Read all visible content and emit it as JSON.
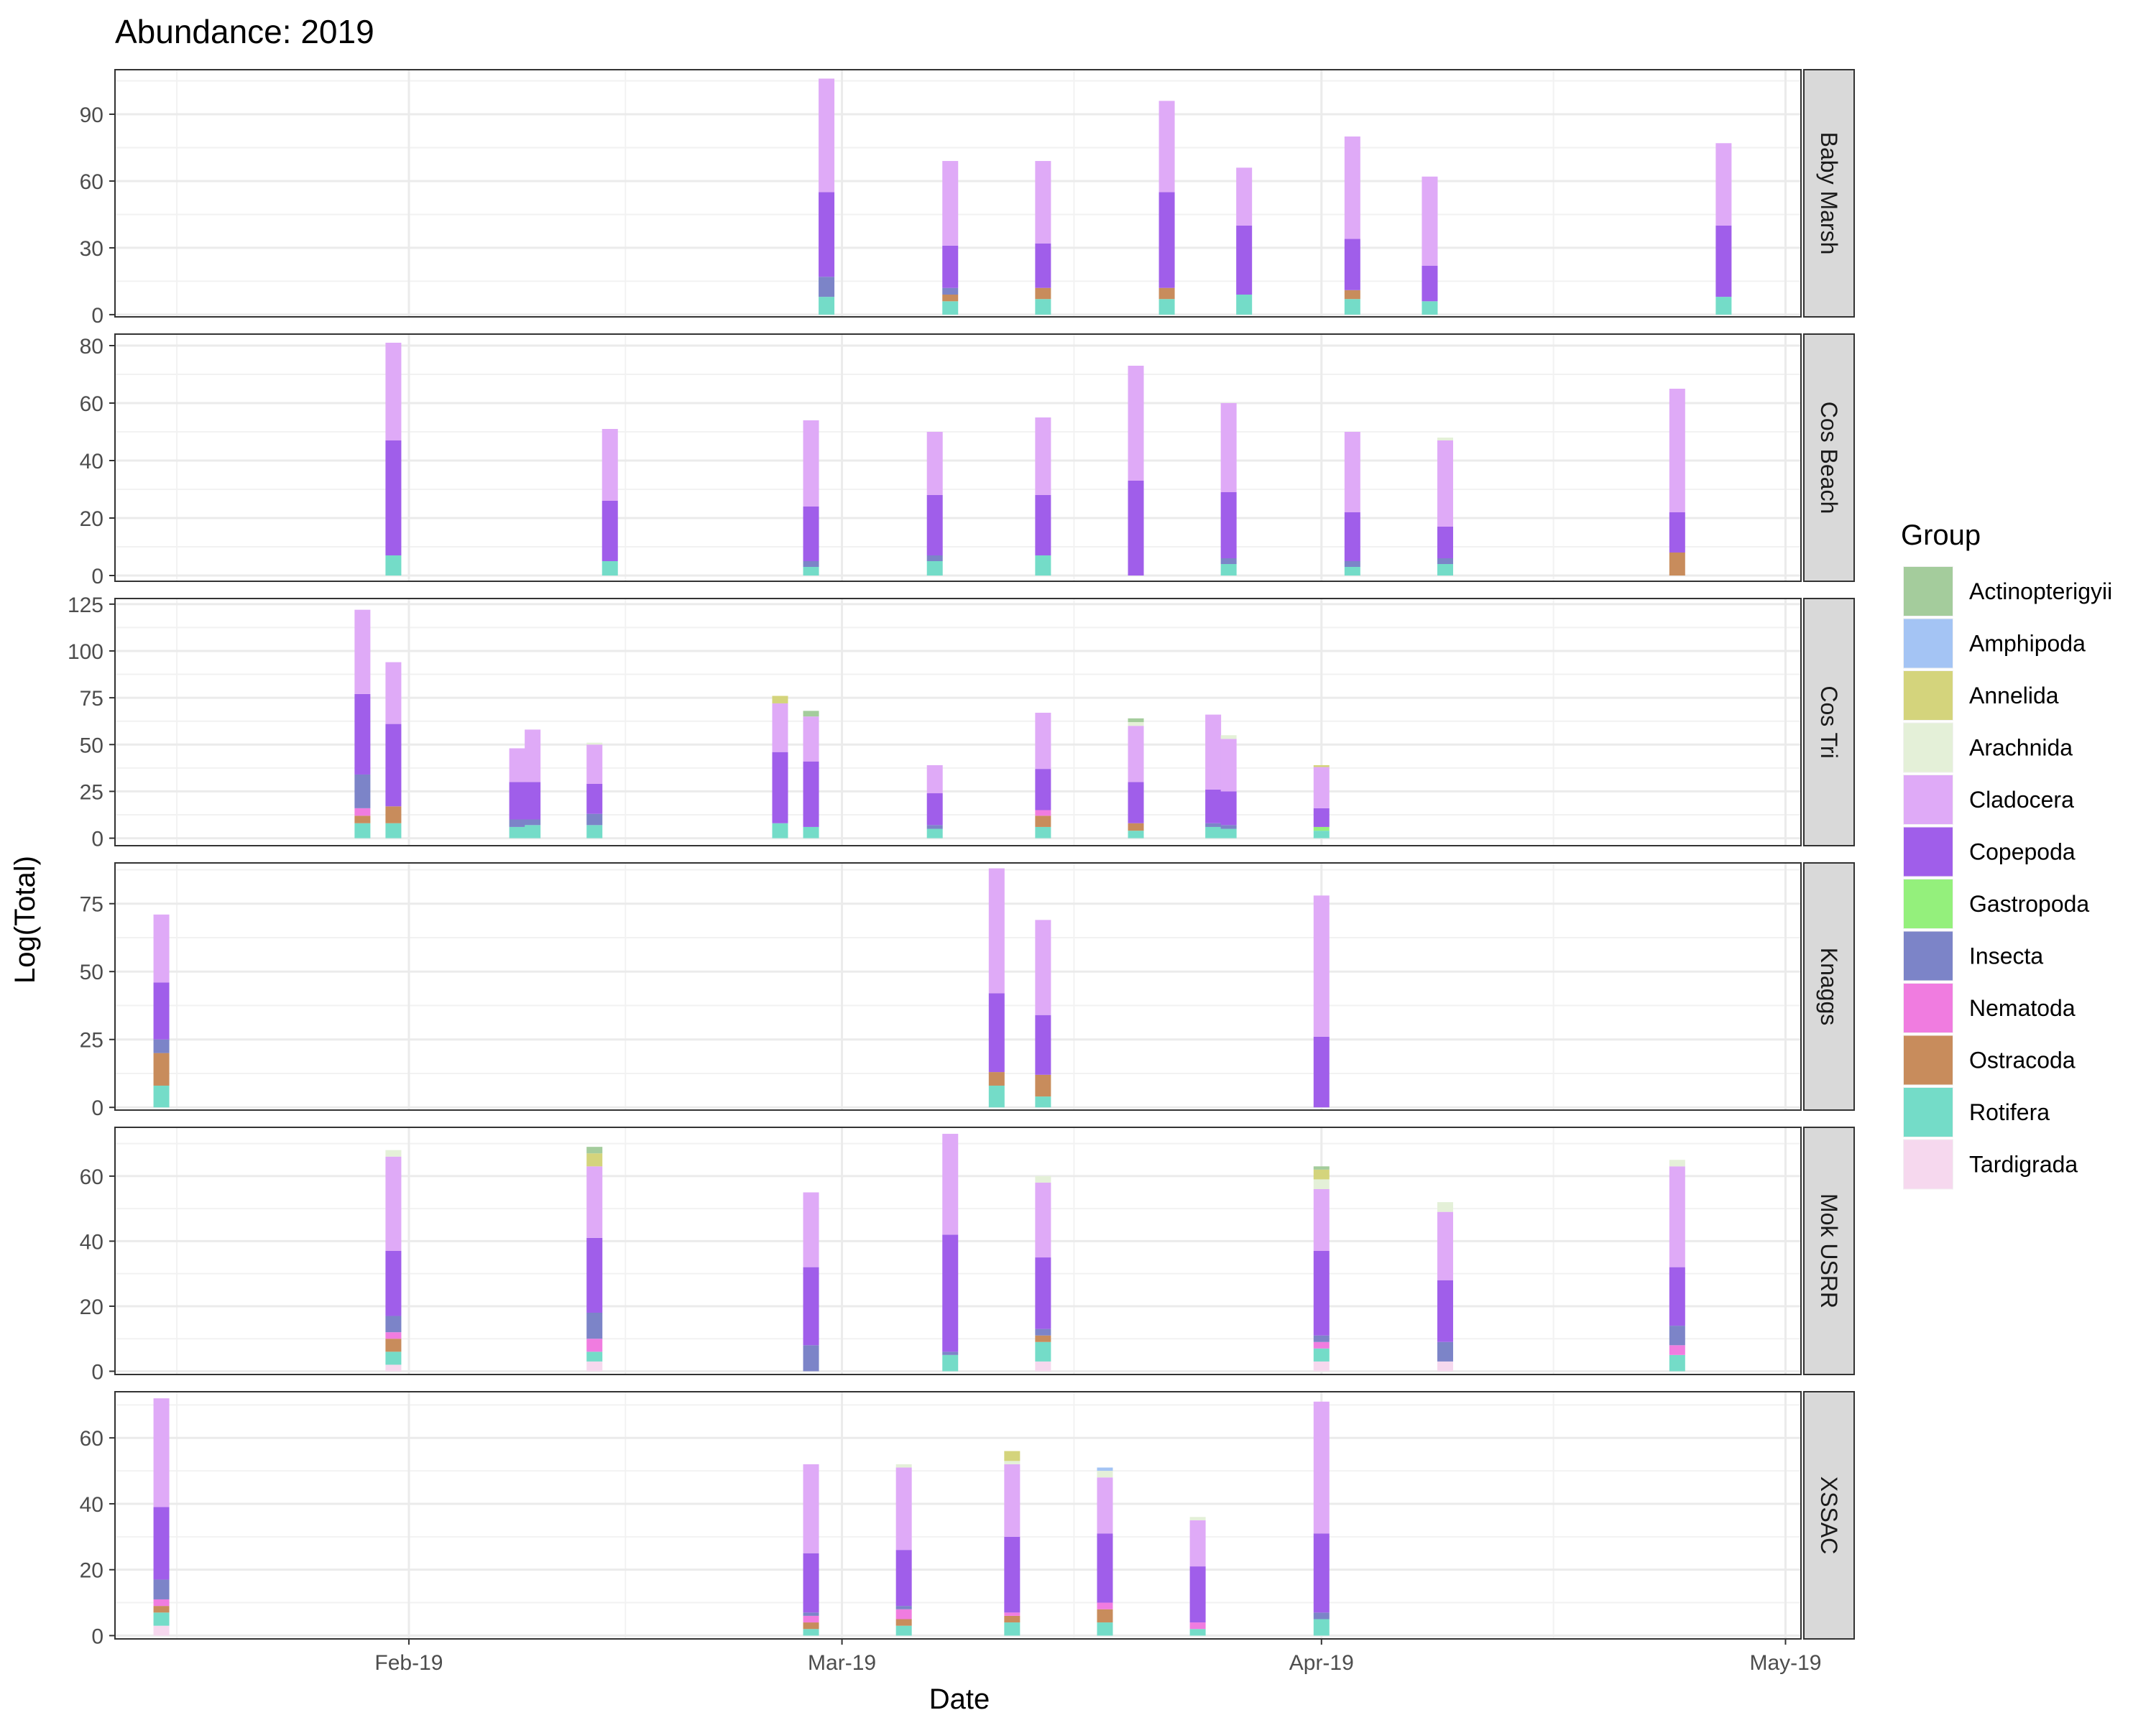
{
  "chart_data": {
    "type": "bar",
    "stacked": true,
    "faceted": true,
    "title": "Abundance: 2019",
    "xlabel": "Date",
    "ylabel": "Log(Total)",
    "legend_title": "Group",
    "legend_position": "right",
    "grid": true,
    "x_range": [
      "2019-01-13",
      "2019-05-02"
    ],
    "x_ticks": [
      {
        "date": "2019-02-01",
        "label": "Feb-19"
      },
      {
        "date": "2019-03-01",
        "label": "Mar-19"
      },
      {
        "date": "2019-04-01",
        "label": "Apr-19"
      },
      {
        "date": "2019-05-01",
        "label": "May-19"
      }
    ],
    "groups": [
      {
        "name": "Actinopterigyii",
        "color": "#a4cc9c"
      },
      {
        "name": "Amphipoda",
        "color": "#a4c4f4"
      },
      {
        "name": "Annelida",
        "color": "#d4d47c"
      },
      {
        "name": "Arachnida",
        "color": "#e4f0d8"
      },
      {
        "name": "Cladocera",
        "color": "#dfaaf7"
      },
      {
        "name": "Copepoda",
        "color": "#a05eea"
      },
      {
        "name": "Gastropoda",
        "color": "#94f07c"
      },
      {
        "name": "Insecta",
        "color": "#7c84c8"
      },
      {
        "name": "Nematoda",
        "color": "#f07ce0"
      },
      {
        "name": "Ostracoda",
        "color": "#c88c5c"
      },
      {
        "name": "Rotifera",
        "color": "#74dcc8"
      },
      {
        "name": "Tardigrada",
        "color": "#f6d8ee"
      }
    ],
    "facets": [
      {
        "name": "Baby Marsh",
        "ylim": [
          -1,
          110
        ],
        "yticks": [
          0,
          30,
          60,
          90
        ],
        "bars": [
          {
            "date": "2019-02-28",
            "segments": {
              "Rotifera": 8,
              "Insecta": 9,
              "Copepoda": 38,
              "Cladocera": 51
            }
          },
          {
            "date": "2019-03-08",
            "segments": {
              "Rotifera": 6,
              "Ostracoda": 3,
              "Insecta": 3,
              "Copepoda": 19,
              "Cladocera": 38
            }
          },
          {
            "date": "2019-03-14",
            "segments": {
              "Rotifera": 7,
              "Ostracoda": 5,
              "Copepoda": 20,
              "Cladocera": 37
            }
          },
          {
            "date": "2019-03-22",
            "segments": {
              "Rotifera": 7,
              "Ostracoda": 5,
              "Copepoda": 43,
              "Cladocera": 41
            }
          },
          {
            "date": "2019-03-27",
            "segments": {
              "Rotifera": 9,
              "Copepoda": 31,
              "Cladocera": 26
            }
          },
          {
            "date": "2019-04-03",
            "segments": {
              "Rotifera": 7,
              "Ostracoda": 4,
              "Copepoda": 23,
              "Cladocera": 46
            }
          },
          {
            "date": "2019-04-08",
            "segments": {
              "Rotifera": 6,
              "Copepoda": 16,
              "Cladocera": 40
            }
          },
          {
            "date": "2019-04-27",
            "segments": {
              "Rotifera": 8,
              "Copepoda": 32,
              "Cladocera": 37
            }
          }
        ]
      },
      {
        "name": "Cos Beach",
        "ylim": [
          -2,
          84
        ],
        "yticks": [
          0,
          20,
          40,
          60,
          80
        ],
        "bars": [
          {
            "date": "2019-01-31",
            "segments": {
              "Rotifera": 7,
              "Copepoda": 40,
              "Cladocera": 34
            }
          },
          {
            "date": "2019-02-14",
            "segments": {
              "Rotifera": 5,
              "Copepoda": 21,
              "Cladocera": 25
            }
          },
          {
            "date": "2019-02-27",
            "segments": {
              "Rotifera": 3,
              "Insecta": 2,
              "Copepoda": 19,
              "Cladocera": 30
            }
          },
          {
            "date": "2019-03-07",
            "segments": {
              "Rotifera": 5,
              "Insecta": 2,
              "Copepoda": 21,
              "Cladocera": 22
            }
          },
          {
            "date": "2019-03-14",
            "segments": {
              "Rotifera": 7,
              "Copepoda": 21,
              "Cladocera": 27
            }
          },
          {
            "date": "2019-03-20",
            "segments": {
              "Copepoda": 33,
              "Cladocera": 40
            }
          },
          {
            "date": "2019-03-26",
            "segments": {
              "Rotifera": 4,
              "Insecta": 2,
              "Copepoda": 23,
              "Cladocera": 31
            }
          },
          {
            "date": "2019-04-03",
            "segments": {
              "Rotifera": 3,
              "Insecta": 2,
              "Copepoda": 17,
              "Cladocera": 28
            }
          },
          {
            "date": "2019-04-09",
            "segments": {
              "Rotifera": 4,
              "Insecta": 2,
              "Copepoda": 11,
              "Cladocera": 30,
              "Arachnida": 1
            }
          },
          {
            "date": "2019-04-24",
            "segments": {
              "Ostracoda": 8,
              "Copepoda": 14,
              "Cladocera": 43
            }
          }
        ]
      },
      {
        "name": "Cos Tri",
        "ylim": [
          -4,
          128
        ],
        "yticks": [
          0,
          25,
          50,
          75,
          100,
          125
        ],
        "bars": [
          {
            "date": "2019-01-29",
            "segments": {
              "Rotifera": 8,
              "Ostracoda": 4,
              "Nematoda": 4,
              "Insecta": 18,
              "Copepoda": 43,
              "Cladocera": 45
            }
          },
          {
            "date": "2019-01-31",
            "segments": {
              "Rotifera": 8,
              "Ostracoda": 9,
              "Copepoda": 44,
              "Cladocera": 33
            }
          },
          {
            "date": "2019-02-08",
            "segments": {
              "Rotifera": 6,
              "Insecta": 4,
              "Copepoda": 20,
              "Cladocera": 18
            }
          },
          {
            "date": "2019-02-09",
            "segments": {
              "Rotifera": 7,
              "Insecta": 3,
              "Copepoda": 20,
              "Cladocera": 28
            }
          },
          {
            "date": "2019-02-13",
            "segments": {
              "Rotifera": 7,
              "Insecta": 6,
              "Copepoda": 16,
              "Cladocera": 21,
              "Arachnida": 1
            }
          },
          {
            "date": "2019-02-25",
            "segments": {
              "Rotifera": 8,
              "Copepoda": 38,
              "Cladocera": 26,
              "Annelida": 4
            }
          },
          {
            "date": "2019-02-27",
            "segments": {
              "Rotifera": 6,
              "Copepoda": 35,
              "Cladocera": 24,
              "Actinopterigyii": 3
            }
          },
          {
            "date": "2019-03-07",
            "segments": {
              "Insecta": 2,
              "Rotifera": 5,
              "Copepoda": 17,
              "Cladocera": 15
            }
          },
          {
            "date": "2019-03-14",
            "segments": {
              "Rotifera": 6,
              "Ostracoda": 6,
              "Nematoda": 3,
              "Copepoda": 22,
              "Cladocera": 30
            }
          },
          {
            "date": "2019-03-20",
            "segments": {
              "Rotifera": 4,
              "Ostracoda": 4,
              "Copepoda": 22,
              "Cladocera": 30,
              "Arachnida": 2,
              "Actinopterigyii": 2
            }
          },
          {
            "date": "2019-03-25",
            "segments": {
              "Rotifera": 6,
              "Insecta": 2,
              "Copepoda": 18,
              "Cladocera": 40
            }
          },
          {
            "date": "2019-03-26",
            "segments": {
              "Rotifera": 5,
              "Insecta": 2,
              "Copepoda": 18,
              "Cladocera": 28,
              "Arachnida": 2
            }
          },
          {
            "date": "2019-04-01",
            "segments": {
              "Rotifera": 4,
              "Gastropoda": 2,
              "Annelida": 1,
              "Copepoda": 10,
              "Cladocera": 22
            }
          }
        ]
      },
      {
        "name": "Knaggs",
        "ylim": [
          -1,
          90
        ],
        "yticks": [
          0,
          25,
          50,
          75
        ],
        "bars": [
          {
            "date": "2019-01-16",
            "segments": {
              "Rotifera": 8,
              "Ostracoda": 12,
              "Insecta": 5,
              "Copepoda": 21,
              "Cladocera": 25
            }
          },
          {
            "date": "2019-03-11",
            "segments": {
              "Rotifera": 8,
              "Ostracoda": 5,
              "Copepoda": 29,
              "Cladocera": 46
            }
          },
          {
            "date": "2019-03-14",
            "segments": {
              "Rotifera": 4,
              "Ostracoda": 8,
              "Copepoda": 22,
              "Cladocera": 35
            }
          },
          {
            "date": "2019-04-01",
            "segments": {
              "Copepoda": 26,
              "Cladocera": 52
            }
          }
        ]
      },
      {
        "name": "Mok USRR",
        "ylim": [
          -1,
          75
        ],
        "yticks": [
          0,
          20,
          40,
          60
        ],
        "bars": [
          {
            "date": "2019-01-31",
            "segments": {
              "Tardigrada": 2,
              "Rotifera": 4,
              "Ostracoda": 4,
              "Nematoda": 2,
              "Insecta": 5,
              "Copepoda": 20,
              "Cladocera": 29,
              "Arachnida": 2
            }
          },
          {
            "date": "2019-02-13",
            "segments": {
              "Tardigrada": 3,
              "Rotifera": 3,
              "Nematoda": 4,
              "Insecta": 8,
              "Copepoda": 23,
              "Cladocera": 22,
              "Annelida": 4,
              "Actinopterigyii": 2
            }
          },
          {
            "date": "2019-02-27",
            "segments": {
              "Insecta": 8,
              "Copepoda": 24,
              "Cladocera": 23
            }
          },
          {
            "date": "2019-03-08",
            "segments": {
              "Rotifera": 5,
              "Insecta": 1,
              "Copepoda": 36,
              "Cladocera": 31
            }
          },
          {
            "date": "2019-03-14",
            "segments": {
              "Tardigrada": 3,
              "Rotifera": 6,
              "Ostracoda": 2,
              "Insecta": 2,
              "Copepoda": 22,
              "Cladocera": 23,
              "Arachnida": 2
            }
          },
          {
            "date": "2019-04-01",
            "segments": {
              "Tardigrada": 3,
              "Rotifera": 4,
              "Nematoda": 2,
              "Insecta": 2,
              "Copepoda": 26,
              "Cladocera": 19,
              "Arachnida": 3,
              "Annelida": 3,
              "Actinopterigyii": 1
            }
          },
          {
            "date": "2019-04-09",
            "segments": {
              "Tardigrada": 3,
              "Insecta": 6,
              "Copepoda": 19,
              "Cladocera": 21,
              "Arachnida": 3
            }
          },
          {
            "date": "2019-04-24",
            "segments": {
              "Rotifera": 5,
              "Nematoda": 3,
              "Insecta": 6,
              "Copepoda": 18,
              "Cladocera": 31,
              "Arachnida": 2
            }
          }
        ]
      },
      {
        "name": "XSSAC",
        "ylim": [
          -1,
          74
        ],
        "yticks": [
          0,
          20,
          40,
          60
        ],
        "bars": [
          {
            "date": "2019-01-16",
            "segments": {
              "Tardigrada": 3,
              "Rotifera": 4,
              "Nematoda": 2,
              "Ostracoda": 2,
              "Insecta": 6,
              "Copepoda": 22,
              "Cladocera": 33
            }
          },
          {
            "date": "2019-02-27",
            "segments": {
              "Rotifera": 2,
              "Ostracoda": 2,
              "Nematoda": 2,
              "Insecta": 1,
              "Copepoda": 18,
              "Cladocera": 27
            }
          },
          {
            "date": "2019-03-05",
            "segments": {
              "Rotifera": 3,
              "Nematoda": 3,
              "Ostracoda": 2,
              "Insecta": 1,
              "Copepoda": 17,
              "Cladocera": 25,
              "Arachnida": 1
            }
          },
          {
            "date": "2019-03-12",
            "segments": {
              "Rotifera": 4,
              "Ostracoda": 2,
              "Nematoda": 1,
              "Copepoda": 23,
              "Cladocera": 22,
              "Arachnida": 1,
              "Annelida": 3
            }
          },
          {
            "date": "2019-03-18",
            "segments": {
              "Rotifera": 4,
              "Ostracoda": 4,
              "Nematoda": 2,
              "Copepoda": 21,
              "Cladocera": 17,
              "Arachnida": 2,
              "Amphipoda": 1
            }
          },
          {
            "date": "2019-03-24",
            "segments": {
              "Rotifera": 2,
              "Nematoda": 2,
              "Copepoda": 17,
              "Cladocera": 14,
              "Arachnida": 1
            }
          },
          {
            "date": "2019-04-01",
            "segments": {
              "Rotifera": 5,
              "Insecta": 2,
              "Copepoda": 24,
              "Cladocera": 40
            }
          }
        ]
      }
    ]
  }
}
